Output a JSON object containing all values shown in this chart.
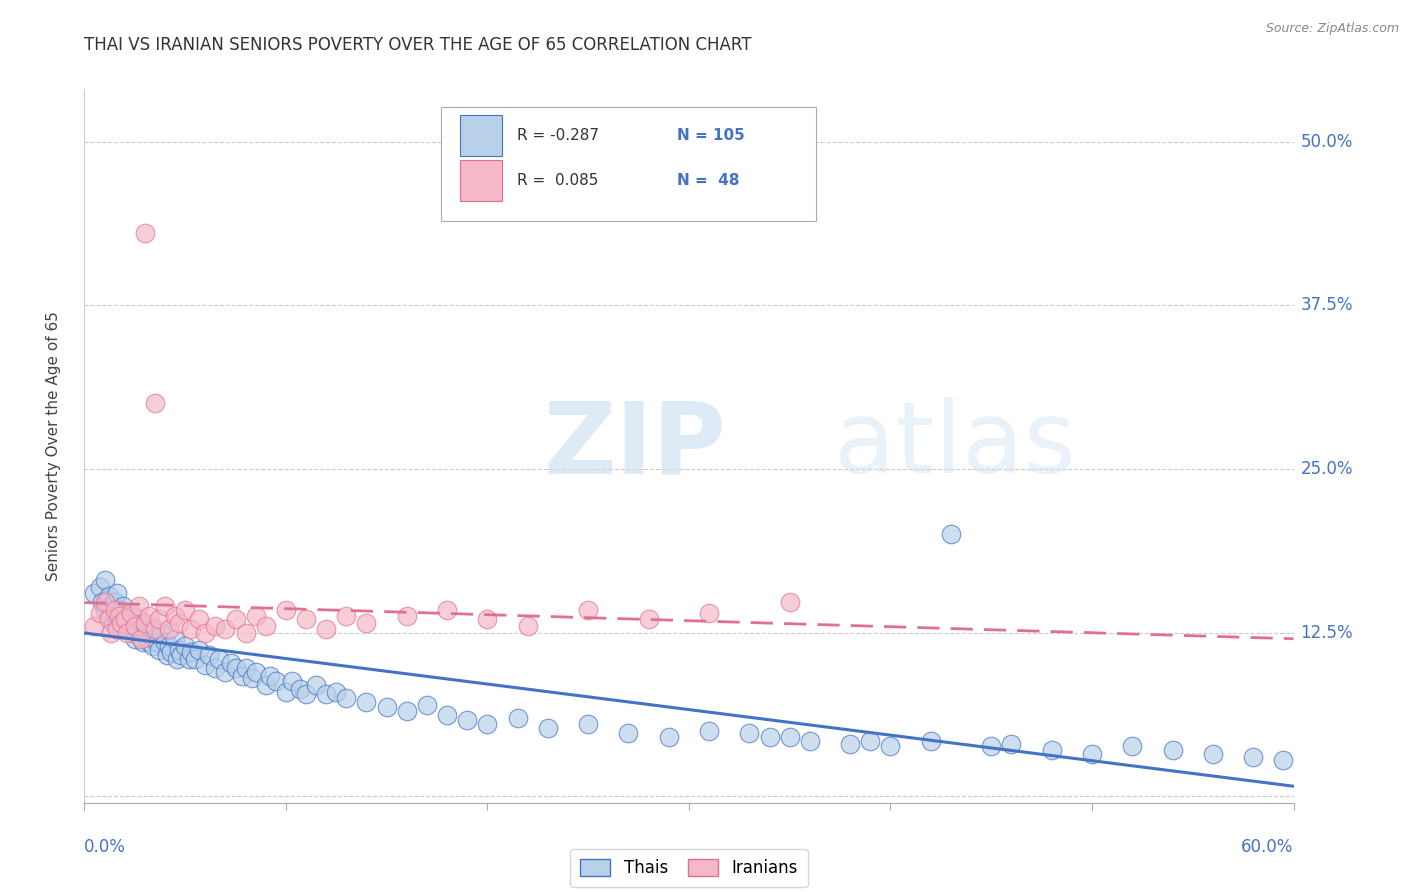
{
  "title": "THAI VS IRANIAN SENIORS POVERTY OVER THE AGE OF 65 CORRELATION CHART",
  "source": "Source: ZipAtlas.com",
  "ylabel": "Seniors Poverty Over the Age of 65",
  "xlim": [
    0.0,
    0.6
  ],
  "ylim": [
    -0.005,
    0.54
  ],
  "thai_color": "#b8d0e8",
  "iranian_color": "#f4b8c8",
  "thai_line_color": "#4472c4",
  "iranian_line_color": "#e07090",
  "thai_R": -0.287,
  "thai_N": 105,
  "iranian_R": 0.085,
  "iranian_N": 48,
  "watermark_zip": "ZIP",
  "watermark_atlas": "atlas",
  "thai_scatter_x": [
    0.005,
    0.008,
    0.009,
    0.01,
    0.01,
    0.011,
    0.012,
    0.012,
    0.013,
    0.014,
    0.015,
    0.015,
    0.016,
    0.016,
    0.017,
    0.018,
    0.018,
    0.019,
    0.02,
    0.02,
    0.021,
    0.022,
    0.023,
    0.024,
    0.025,
    0.025,
    0.026,
    0.027,
    0.028,
    0.029,
    0.03,
    0.031,
    0.032,
    0.033,
    0.034,
    0.035,
    0.036,
    0.037,
    0.038,
    0.04,
    0.041,
    0.042,
    0.043,
    0.045,
    0.046,
    0.047,
    0.048,
    0.05,
    0.052,
    0.053,
    0.055,
    0.057,
    0.06,
    0.062,
    0.065,
    0.067,
    0.07,
    0.073,
    0.075,
    0.078,
    0.08,
    0.083,
    0.085,
    0.09,
    0.092,
    0.095,
    0.1,
    0.103,
    0.107,
    0.11,
    0.115,
    0.12,
    0.125,
    0.13,
    0.14,
    0.15,
    0.16,
    0.17,
    0.18,
    0.19,
    0.2,
    0.215,
    0.23,
    0.25,
    0.27,
    0.29,
    0.31,
    0.34,
    0.36,
    0.38,
    0.4,
    0.42,
    0.45,
    0.48,
    0.5,
    0.52,
    0.54,
    0.56,
    0.58,
    0.595,
    0.43,
    0.46,
    0.39,
    0.33,
    0.35
  ],
  "thai_scatter_y": [
    0.155,
    0.16,
    0.148,
    0.142,
    0.165,
    0.15,
    0.138,
    0.153,
    0.145,
    0.132,
    0.148,
    0.14,
    0.155,
    0.135,
    0.142,
    0.138,
    0.128,
    0.145,
    0.14,
    0.13,
    0.135,
    0.128,
    0.138,
    0.125,
    0.132,
    0.12,
    0.128,
    0.135,
    0.122,
    0.118,
    0.13,
    0.125,
    0.118,
    0.128,
    0.115,
    0.122,
    0.118,
    0.112,
    0.125,
    0.118,
    0.108,
    0.115,
    0.11,
    0.12,
    0.105,
    0.112,
    0.108,
    0.115,
    0.105,
    0.11,
    0.105,
    0.112,
    0.1,
    0.108,
    0.098,
    0.105,
    0.095,
    0.102,
    0.098,
    0.092,
    0.098,
    0.09,
    0.095,
    0.085,
    0.092,
    0.088,
    0.08,
    0.088,
    0.082,
    0.078,
    0.085,
    0.078,
    0.08,
    0.075,
    0.072,
    0.068,
    0.065,
    0.07,
    0.062,
    0.058,
    0.055,
    0.06,
    0.052,
    0.055,
    0.048,
    0.045,
    0.05,
    0.045,
    0.042,
    0.04,
    0.038,
    0.042,
    0.038,
    0.035,
    0.032,
    0.038,
    0.035,
    0.032,
    0.03,
    0.028,
    0.2,
    0.04,
    0.042,
    0.048,
    0.045
  ],
  "iranian_scatter_x": [
    0.005,
    0.008,
    0.01,
    0.012,
    0.013,
    0.015,
    0.016,
    0.017,
    0.018,
    0.02,
    0.021,
    0.023,
    0.025,
    0.027,
    0.028,
    0.03,
    0.032,
    0.035,
    0.037,
    0.04,
    0.042,
    0.045,
    0.047,
    0.05,
    0.053,
    0.057,
    0.06,
    0.065,
    0.07,
    0.075,
    0.08,
    0.085,
    0.09,
    0.1,
    0.11,
    0.12,
    0.13,
    0.14,
    0.16,
    0.18,
    0.2,
    0.22,
    0.25,
    0.28,
    0.31,
    0.35,
    0.03,
    0.035
  ],
  "iranian_scatter_y": [
    0.13,
    0.14,
    0.148,
    0.135,
    0.125,
    0.142,
    0.128,
    0.138,
    0.132,
    0.135,
    0.125,
    0.14,
    0.13,
    0.145,
    0.12,
    0.132,
    0.138,
    0.128,
    0.135,
    0.145,
    0.128,
    0.138,
    0.132,
    0.142,
    0.128,
    0.135,
    0.125,
    0.13,
    0.128,
    0.135,
    0.125,
    0.138,
    0.13,
    0.142,
    0.135,
    0.128,
    0.138,
    0.132,
    0.138,
    0.142,
    0.135,
    0.13,
    0.142,
    0.135,
    0.14,
    0.148,
    0.43,
    0.3
  ],
  "background_color": "#ffffff",
  "grid_color": "#cccccc",
  "axis_label_color": "#4472c4",
  "title_color": "#333333"
}
